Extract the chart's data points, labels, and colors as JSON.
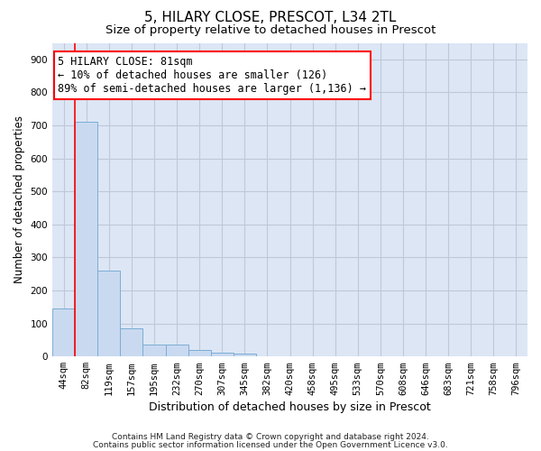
{
  "title": "5, HILARY CLOSE, PRESCOT, L34 2TL",
  "subtitle": "Size of property relative to detached houses in Prescot",
  "xlabel": "Distribution of detached houses by size in Prescot",
  "ylabel": "Number of detached properties",
  "categories": [
    "44sqm",
    "82sqm",
    "119sqm",
    "157sqm",
    "195sqm",
    "232sqm",
    "270sqm",
    "307sqm",
    "345sqm",
    "382sqm",
    "420sqm",
    "458sqm",
    "495sqm",
    "533sqm",
    "570sqm",
    "608sqm",
    "646sqm",
    "683sqm",
    "721sqm",
    "758sqm",
    "796sqm"
  ],
  "values": [
    145,
    710,
    260,
    85,
    35,
    35,
    20,
    12,
    10,
    0,
    0,
    0,
    0,
    0,
    0,
    0,
    0,
    0,
    0,
    0,
    0
  ],
  "bar_color": "#c9d9f0",
  "bar_edge_color": "#7badd4",
  "grid_color": "#c0c8d8",
  "background_color": "#dce6f5",
  "annotation_line1": "5 HILARY CLOSE: 81sqm",
  "annotation_line2": "← 10% of detached houses are smaller (126)",
  "annotation_line3": "89% of semi-detached houses are larger (1,136) →",
  "vline_x": 0.5,
  "ylim": [
    0,
    950
  ],
  "yticks": [
    0,
    100,
    200,
    300,
    400,
    500,
    600,
    700,
    800,
    900
  ],
  "footer1": "Contains HM Land Registry data © Crown copyright and database right 2024.",
  "footer2": "Contains public sector information licensed under the Open Government Licence v3.0.",
  "title_fontsize": 11,
  "subtitle_fontsize": 9.5,
  "xlabel_fontsize": 9,
  "ylabel_fontsize": 8.5,
  "tick_fontsize": 7.5,
  "annotation_fontsize": 8.5,
  "footer_fontsize": 6.5
}
